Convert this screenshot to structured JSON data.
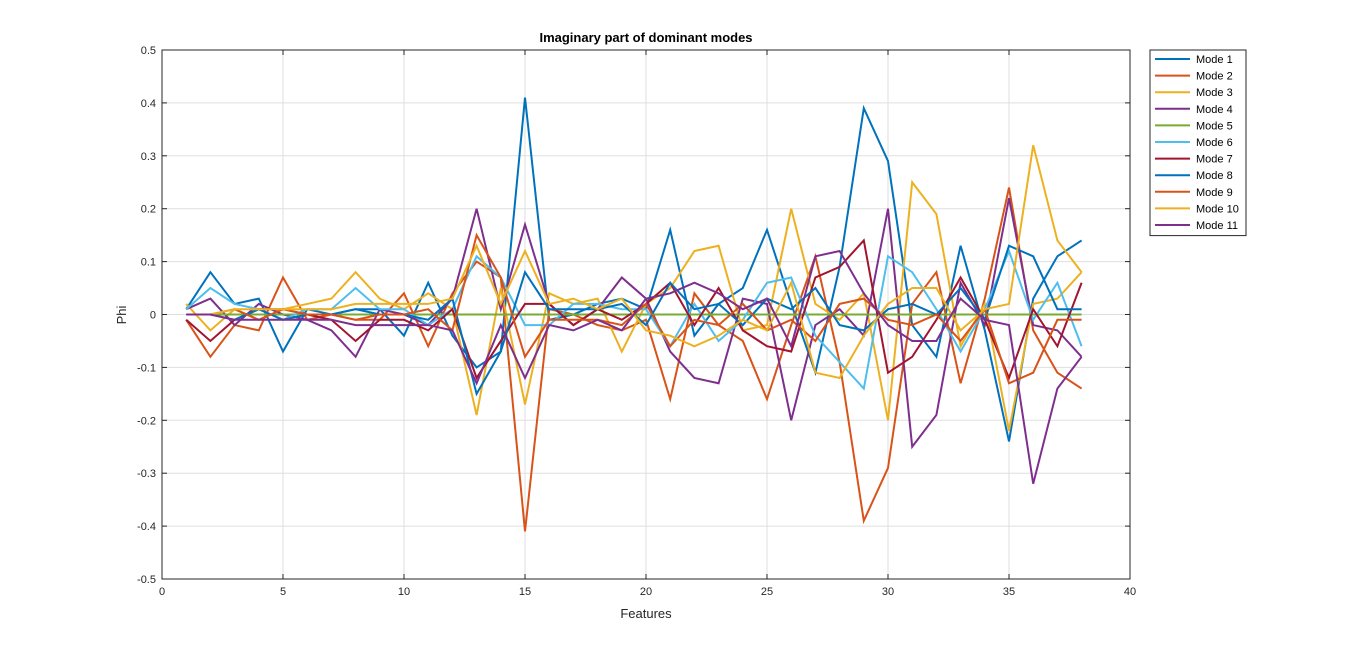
{
  "chart_data": {
    "type": "line",
    "title": "Imaginary part of dominant modes",
    "xlabel": "Features",
    "ylabel": "Phi",
    "xlim": [
      0,
      40
    ],
    "ylim": [
      -0.5,
      0.5
    ],
    "xticks": [
      0,
      5,
      10,
      15,
      20,
      25,
      30,
      35,
      40
    ],
    "yticks": [
      -0.5,
      -0.4,
      -0.3,
      -0.2,
      -0.1,
      0,
      0.1,
      0.2,
      0.3,
      0.4,
      0.5
    ],
    "grid": true,
    "legend_position": "outside-top-right",
    "x": [
      1,
      2,
      3,
      4,
      5,
      6,
      7,
      8,
      9,
      10,
      11,
      12,
      13,
      14,
      15,
      16,
      17,
      18,
      19,
      20,
      21,
      22,
      23,
      24,
      25,
      26,
      27,
      28,
      29,
      30,
      31,
      32,
      33,
      34,
      35,
      36,
      37,
      38
    ],
    "series": [
      {
        "name": "Mode 1",
        "color": "#0072BD",
        "values": [
          0.01,
          0.08,
          0.02,
          0.03,
          -0.07,
          0.01,
          0,
          0.01,
          0.01,
          -0.04,
          0.06,
          -0.04,
          -0.1,
          -0.07,
          0.41,
          -0.01,
          0,
          0.02,
          0.03,
          0.01,
          0.16,
          -0.04,
          0.02,
          0.05,
          0.16,
          0.02,
          -0.11,
          0.09,
          0.39,
          0.29,
          -0.02,
          -0.08,
          0.13,
          -0.03,
          -0.24,
          0.03,
          0.11,
          0.14
        ]
      },
      {
        "name": "Mode 2",
        "color": "#D95319",
        "values": [
          -0.01,
          -0.08,
          -0.02,
          -0.03,
          0.07,
          -0.01,
          0,
          -0.01,
          -0.01,
          0.04,
          -0.06,
          0.04,
          0.1,
          0.07,
          -0.41,
          0.01,
          0,
          -0.02,
          -0.03,
          -0.01,
          -0.16,
          0.04,
          -0.02,
          -0.05,
          -0.16,
          -0.02,
          0.11,
          -0.09,
          -0.39,
          -0.29,
          0.02,
          0.08,
          -0.13,
          0.03,
          0.24,
          -0.03,
          -0.11,
          -0.14
        ]
      },
      {
        "name": "Mode 3",
        "color": "#EDB120",
        "values": [
          0.02,
          -0.03,
          0.01,
          -0.01,
          0.01,
          0.02,
          0.03,
          0.08,
          0.03,
          0.01,
          0.04,
          0.01,
          -0.19,
          0.05,
          -0.17,
          0.04,
          0.02,
          0.03,
          -0.07,
          0.02,
          0.05,
          0.12,
          0.13,
          -0.03,
          -0.02,
          0.2,
          0.02,
          -0.01,
          0.04,
          -0.2,
          0.25,
          0.19,
          -0.06,
          0.02,
          -0.22,
          0.02,
          0.03,
          0.08
        ]
      },
      {
        "name": "Mode 4",
        "color": "#7E2F8E",
        "values": [
          0.01,
          0.03,
          -0.02,
          0.02,
          0,
          -0.01,
          -0.03,
          -0.08,
          0.01,
          0,
          -0.02,
          0.03,
          0.2,
          0.01,
          0.17,
          0.02,
          -0.02,
          0.01,
          0.07,
          0.03,
          -0.07,
          -0.12,
          -0.13,
          0.03,
          0.02,
          -0.2,
          -0.02,
          0.01,
          -0.04,
          0.2,
          -0.25,
          -0.19,
          0.06,
          -0.02,
          0.22,
          -0.02,
          -0.03,
          -0.08
        ]
      },
      {
        "name": "Mode 5",
        "color": "#77AC30",
        "values": [
          0,
          0,
          0,
          0,
          0,
          0,
          0,
          0,
          0,
          0,
          0,
          0,
          0,
          0,
          0,
          0,
          0,
          0,
          0,
          0,
          0,
          0,
          0,
          0,
          0,
          0,
          0,
          0,
          0,
          0,
          0,
          0,
          0,
          0,
          0,
          0,
          0,
          0
        ]
      },
      {
        "name": "Mode 6",
        "color": "#4DBEEE",
        "values": [
          0.01,
          0.05,
          0.02,
          0.01,
          -0.01,
          0.01,
          0.01,
          0.05,
          0.01,
          0.01,
          -0.02,
          0.01,
          0.11,
          0.07,
          -0.02,
          -0.02,
          0.02,
          0.02,
          0.01,
          0.01,
          -0.06,
          0.02,
          -0.05,
          -0.01,
          0.06,
          0.07,
          -0.04,
          -0.09,
          -0.14,
          0.11,
          0.08,
          0.01,
          -0.07,
          0.01,
          0.12,
          -0.01,
          0.06,
          -0.06
        ]
      },
      {
        "name": "Mode 7",
        "color": "#A2142F",
        "values": [
          -0.01,
          -0.05,
          -0.01,
          0.01,
          0.01,
          0,
          -0.01,
          -0.05,
          -0.01,
          -0.01,
          -0.03,
          0.01,
          -0.12,
          -0.05,
          0.02,
          0.02,
          -0.02,
          0.01,
          -0.01,
          0.02,
          0.06,
          -0.02,
          0.05,
          -0.03,
          -0.06,
          -0.07,
          0.07,
          0.09,
          0.14,
          -0.11,
          -0.08,
          -0.01,
          0.07,
          -0.01,
          -0.12,
          0.01,
          -0.06,
          0.06
        ]
      },
      {
        "name": "Mode 8",
        "color": "#0072BD",
        "values": [
          0,
          0,
          -0.01,
          0.01,
          -0.01,
          0,
          0,
          0.01,
          0,
          0,
          -0.01,
          0.03,
          -0.15,
          -0.07,
          0.08,
          0.01,
          0.01,
          0.01,
          0.02,
          -0.02,
          0.06,
          0.01,
          0.02,
          -0.02,
          0.03,
          0.01,
          0.05,
          -0.02,
          -0.03,
          0.01,
          0.02,
          0,
          0.05,
          -0.01,
          0.13,
          0.11,
          0.01,
          0.01
        ]
      },
      {
        "name": "Mode 9",
        "color": "#D95319",
        "values": [
          0,
          0,
          0.01,
          -0.01,
          0.01,
          0,
          0,
          -0.01,
          0,
          0,
          0.01,
          -0.03,
          0.15,
          0.07,
          -0.08,
          -0.01,
          -0.01,
          -0.01,
          -0.02,
          0.02,
          -0.06,
          -0.01,
          -0.02,
          0.02,
          -0.03,
          -0.01,
          -0.05,
          0.02,
          0.03,
          -0.01,
          -0.02,
          0,
          -0.05,
          0.01,
          -0.13,
          -0.11,
          -0.01,
          -0.01
        ]
      },
      {
        "name": "Mode 10",
        "color": "#EDB120",
        "values": [
          0,
          0,
          0.01,
          0.01,
          0.01,
          0.01,
          0.01,
          0.02,
          0.02,
          0.02,
          0.02,
          0.03,
          0.13,
          0.02,
          0.12,
          0.02,
          0.03,
          0.01,
          0.03,
          -0.03,
          -0.04,
          -0.06,
          -0.04,
          -0.01,
          -0.03,
          0.06,
          -0.11,
          -0.12,
          -0.04,
          0.02,
          0.05,
          0.05,
          -0.03,
          0.01,
          0.02,
          0.32,
          0.14,
          0.08
        ]
      },
      {
        "name": "Mode 11",
        "color": "#7E2F8E",
        "values": [
          0,
          0,
          -0.01,
          -0.01,
          -0.01,
          -0.01,
          -0.01,
          -0.02,
          -0.02,
          -0.02,
          -0.02,
          -0.03,
          -0.13,
          -0.02,
          -0.12,
          -0.02,
          -0.03,
          -0.01,
          -0.03,
          0.03,
          0.04,
          0.06,
          0.04,
          0.01,
          0.03,
          -0.06,
          0.11,
          0.12,
          0.04,
          -0.02,
          -0.05,
          -0.05,
          0.03,
          -0.01,
          -0.02,
          -0.32,
          -0.14,
          -0.08
        ]
      }
    ]
  }
}
